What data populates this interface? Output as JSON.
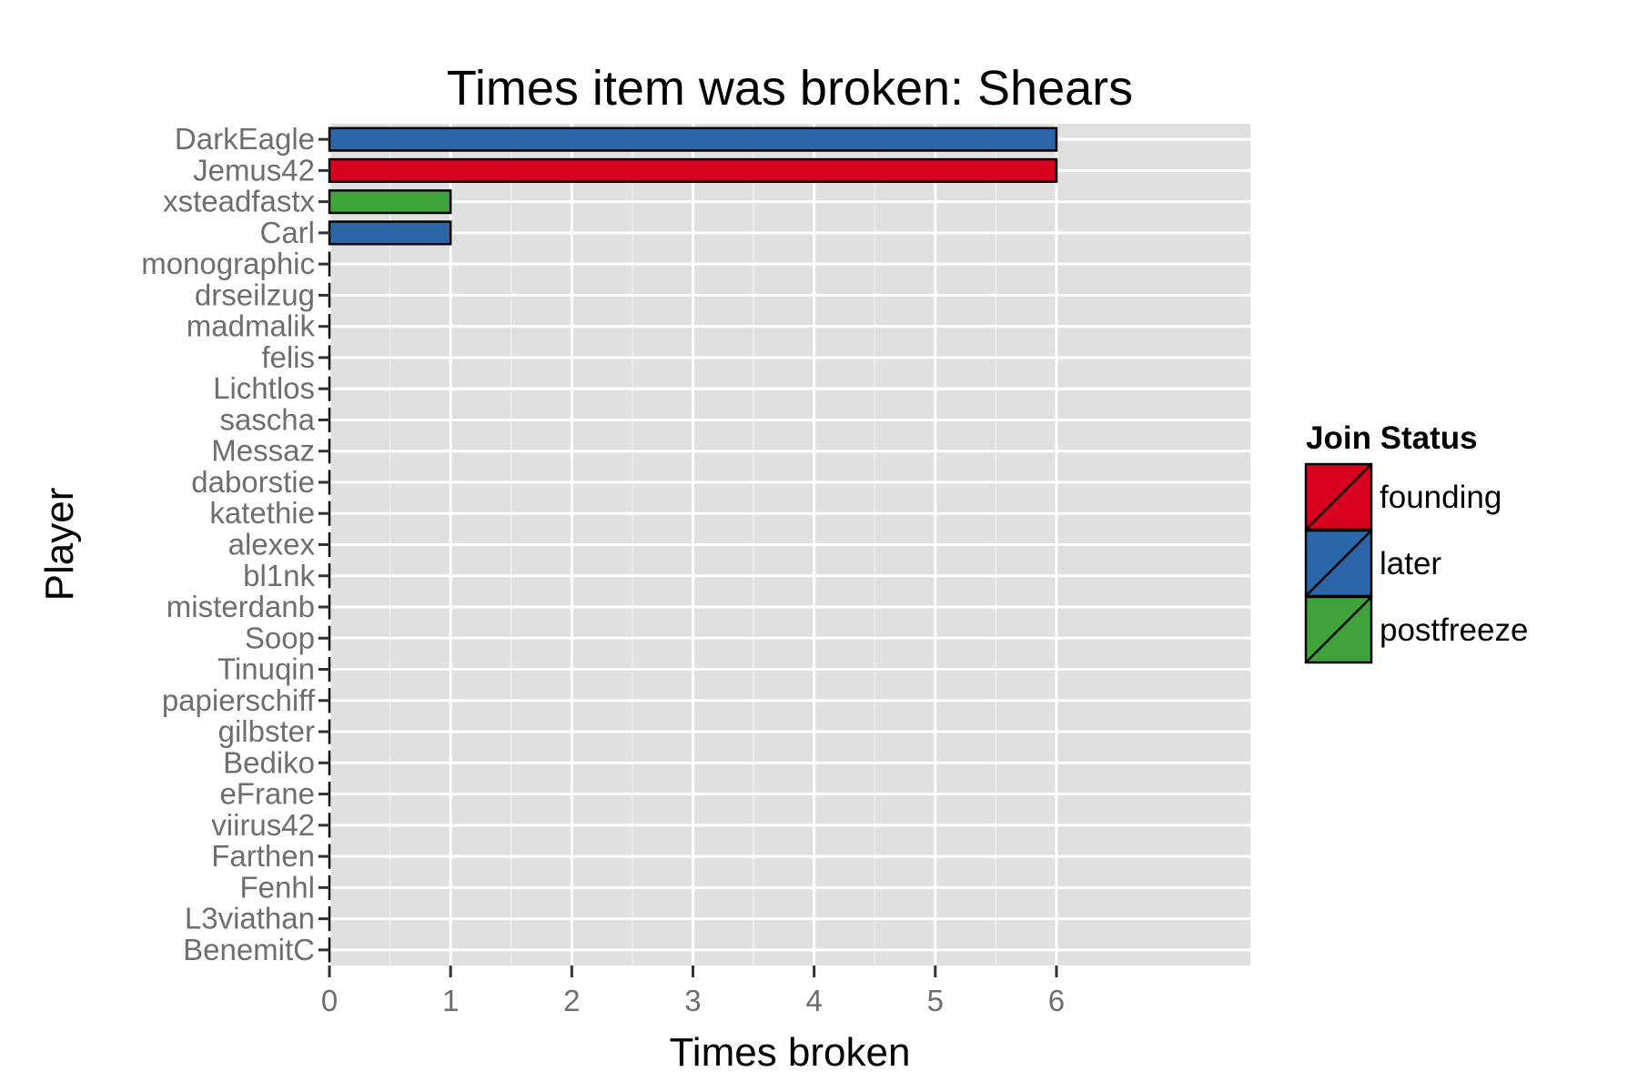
{
  "chart_data": {
    "type": "bar",
    "orientation": "horizontal",
    "title": "Times item was broken: Shears",
    "xlabel": "Times broken",
    "ylabel": "Player",
    "xlim": [
      0,
      7.6
    ],
    "x_ticks": [
      0,
      1,
      2,
      3,
      4,
      5,
      6
    ],
    "grid": true,
    "legend": {
      "title": "Join Status",
      "position": "right",
      "entries": [
        {
          "label": "founding",
          "color": "#d7001d"
        },
        {
          "label": "later",
          "color": "#2b66a8"
        },
        {
          "label": "postfreeze",
          "color": "#3fa23a"
        }
      ]
    },
    "categories": [
      "DarkEagle",
      "Jemus42",
      "xsteadfastx",
      "Carl",
      "monographic",
      "drseilzug",
      "madmalik",
      "felis",
      "Lichtlos",
      "sascha",
      "Messaz",
      "daborstie",
      "katethie",
      "alexex",
      "bl1nk",
      "misterdanb",
      "Soop",
      "Tinuqin",
      "papierschiff",
      "gilbster",
      "Bediko",
      "eFrane",
      "viirus42",
      "Farthen",
      "Fenhl",
      "L3viathan",
      "BenemitC"
    ],
    "values": [
      6,
      6,
      1,
      1,
      0,
      0,
      0,
      0,
      0,
      0,
      0,
      0,
      0,
      0,
      0,
      0,
      0,
      0,
      0,
      0,
      0,
      0,
      0,
      0,
      0,
      0,
      0
    ],
    "status": [
      "later",
      "founding",
      "postfreeze",
      "later",
      "",
      "",
      "",
      "",
      "",
      "",
      "",
      "",
      "",
      "",
      "",
      "",
      "",
      "",
      "",
      "",
      "",
      "",
      "",
      "",
      "",
      "",
      ""
    ]
  }
}
